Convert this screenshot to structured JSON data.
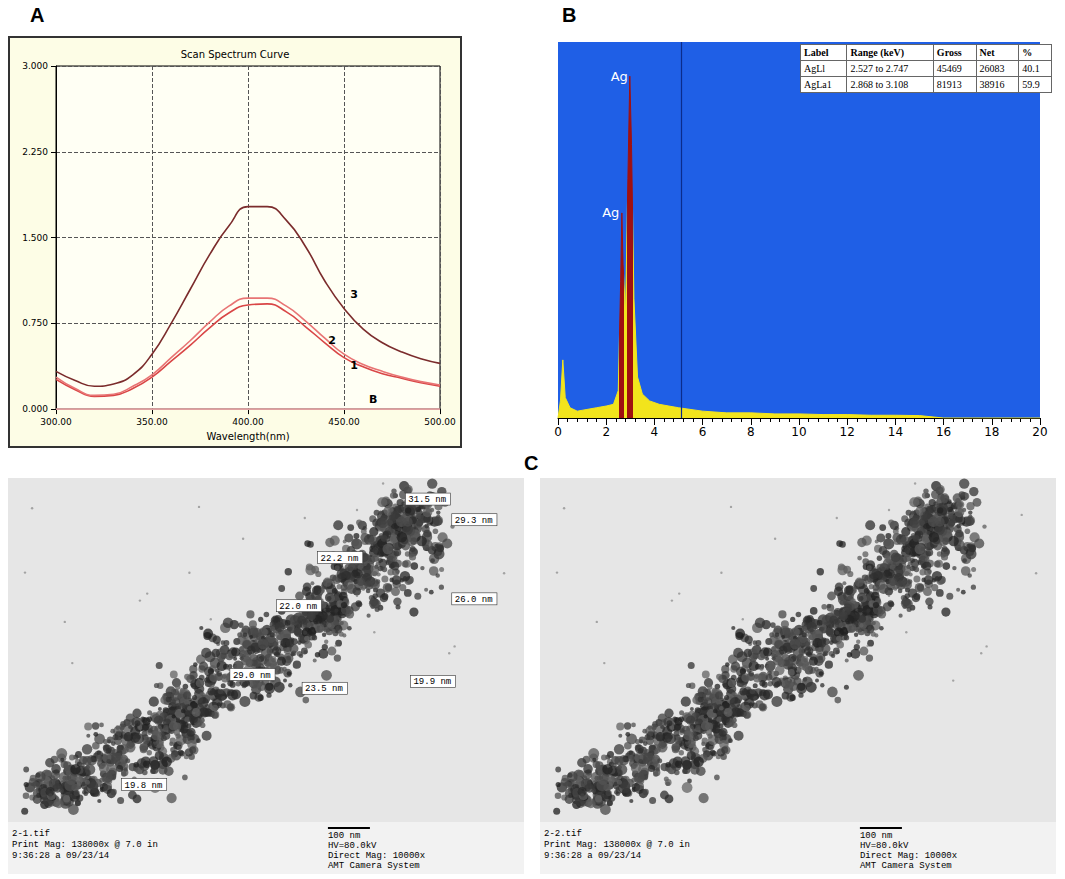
{
  "panel_labels": [
    "A",
    "B",
    "C"
  ],
  "chart_data": [
    {
      "type": "line",
      "title": "Scan Spectrum Curve",
      "x_label": "Wavelength(nm)",
      "x": [
        300,
        310,
        320,
        330,
        340,
        350,
        360,
        370,
        380,
        390,
        400,
        410,
        420,
        430,
        440,
        450,
        460,
        470,
        480,
        490,
        500
      ],
      "xlim": [
        300,
        500
      ],
      "xticks": [
        {
          "value": 300,
          "label": "300.00"
        },
        {
          "value": 350,
          "label": "350.00"
        },
        {
          "value": 400,
          "label": "400.00"
        },
        {
          "value": 450,
          "label": "450.00"
        },
        {
          "value": 500,
          "label": "500.00"
        }
      ],
      "ylim": [
        0,
        3
      ],
      "yticks": [
        {
          "value": 0,
          "label": "0.000"
        },
        {
          "value": 0.75,
          "label": "0.750"
        },
        {
          "value": 1.5,
          "label": "1.500"
        },
        {
          "value": 2.25,
          "label": "2.250"
        },
        {
          "value": 3,
          "label": "3.000"
        }
      ],
      "grid": true,
      "series": [
        {
          "name": "1",
          "color": "#d94646",
          "values": [
            0.26,
            0.17,
            0.11,
            0.12,
            0.18,
            0.28,
            0.42,
            0.56,
            0.71,
            0.84,
            0.91,
            0.92,
            0.85,
            0.72,
            0.58,
            0.45,
            0.37,
            0.31,
            0.27,
            0.23,
            0.2
          ]
        },
        {
          "name": "2",
          "color": "#e87474",
          "values": [
            0.28,
            0.18,
            0.12,
            0.13,
            0.2,
            0.3,
            0.45,
            0.6,
            0.76,
            0.9,
            0.97,
            0.97,
            0.9,
            0.77,
            0.62,
            0.48,
            0.39,
            0.33,
            0.28,
            0.24,
            0.21
          ]
        },
        {
          "name": "3",
          "color": "#7b2c2c",
          "values": [
            0.33,
            0.25,
            0.2,
            0.22,
            0.3,
            0.48,
            0.75,
            1.05,
            1.35,
            1.6,
            1.77,
            1.77,
            1.65,
            1.42,
            1.12,
            0.88,
            0.7,
            0.58,
            0.5,
            0.44,
            0.4
          ]
        },
        {
          "name": "B",
          "color": "#e0a0a0",
          "values": [
            0,
            0,
            0,
            0,
            0,
            0,
            0,
            0,
            0,
            0,
            0,
            0,
            0,
            0,
            0,
            0,
            0,
            0,
            0,
            0,
            0
          ]
        }
      ]
    },
    {
      "type": "area",
      "x": [
        0,
        0.1,
        0.2,
        0.3,
        0.5,
        0.8,
        1.2,
        1.6,
        2.0,
        2.3,
        2.5,
        2.6,
        2.65,
        2.7,
        2.8,
        2.9,
        2.98,
        3.05,
        3.15,
        3.3,
        3.5,
        3.8,
        4.2,
        4.6,
        5,
        6,
        7,
        8,
        9,
        10,
        11,
        12,
        13,
        14,
        15,
        16,
        18,
        20
      ],
      "values": [
        0,
        5,
        17,
        6,
        3,
        2,
        2.5,
        3,
        3.5,
        4,
        8,
        40,
        60,
        45,
        30,
        70,
        100,
        80,
        35,
        12,
        7,
        5,
        4,
        3.5,
        3,
        2,
        1.5,
        1.5,
        1.2,
        1.2,
        1,
        1,
        0.8,
        0.8,
        0.7,
        0,
        0,
        0
      ],
      "color": "#f2e41c",
      "xlim": [
        0,
        20
      ],
      "xticks": [
        0,
        2,
        4,
        6,
        8,
        10,
        12,
        14,
        16,
        18,
        20
      ],
      "ylim": [
        0,
        110
      ],
      "grid": false,
      "tick_labels": "x",
      "vline": 5.1,
      "annotations": [
        {
          "text": "Ag",
          "x": 2.98,
          "y": 100
        },
        {
          "text": "Ag",
          "x": 2.63,
          "y": 60
        }
      ],
      "table_headers": [
        "Label",
        "Range (keV)",
        "Gross",
        "Net",
        "%"
      ],
      "peaks": [
        {
          "label": "AgLl",
          "range": [
            2.527,
            2.747
          ],
          "range_label": "2.527 to 2.747",
          "gross": 45469,
          "net": 26083,
          "percent": 40.1,
          "color": "#a01010"
        },
        {
          "label": "AgLa1",
          "range": [
            2.868,
            3.108
          ],
          "range_label": "2.868 to 3.108",
          "gross": 81913,
          "net": 38916,
          "percent": 59.9,
          "color": "#a01010"
        }
      ]
    }
  ],
  "tem_images": [
    {
      "file": "2-1.tif",
      "print_mag": "Print Mag: 138000x @ 7.0 in",
      "time": "9:36:28 a 09/23/14",
      "scale_bar": "100 nm",
      "hv": "HV=80.0kV",
      "direct_mag": "Direct Mag: 10000x",
      "camera": "AMT Camera System",
      "measurements": [
        "31.5 nm",
        "29.3 nm",
        "22.2 nm",
        "26.0 nm",
        "22.0 nm",
        "29.0 nm",
        "23.5 nm",
        "19.9 nm",
        "19.8 nm"
      ]
    },
    {
      "file": "2-2.tif",
      "print_mag": "Print Mag: 138000x @ 7.0 in",
      "time": "9:36:28 a 09/23/14",
      "scale_bar": "100 nm",
      "hv": "HV=80.0kV",
      "direct_mag": "Direct Mag: 10000x",
      "camera": "AMT Camera System",
      "measurements": []
    }
  ]
}
